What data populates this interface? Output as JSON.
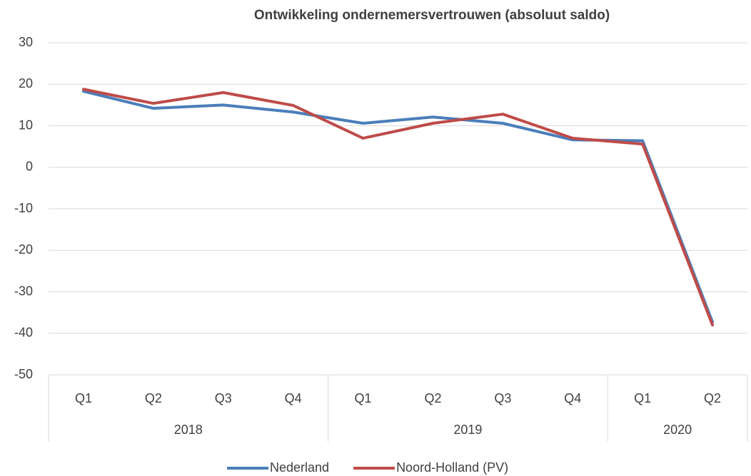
{
  "chart_data": {
    "type": "line",
    "title": "Ontwikkeling ondernemersvertrouwen (absoluut saldo)",
    "groups": [
      {
        "name": "2018",
        "categories": [
          "Q1",
          "Q2",
          "Q3",
          "Q4"
        ]
      },
      {
        "name": "2019",
        "categories": [
          "Q1",
          "Q2",
          "Q3",
          "Q4"
        ]
      },
      {
        "name": "2020",
        "categories": [
          "Q1",
          "Q2"
        ]
      }
    ],
    "series": [
      {
        "name": "Nederland",
        "color": "#4a7ebb",
        "values": [
          18.3,
          14.2,
          15,
          13.3,
          10.6,
          12.1,
          10.6,
          6.6,
          6.4,
          -37.3
        ]
      },
      {
        "name": "Noord-Holland (PV)",
        "color": "#be4b48",
        "values": [
          18.8,
          15.4,
          18,
          14.9,
          7,
          10.6,
          12.8,
          7,
          5.6,
          -38
        ]
      }
    ],
    "ylim": [
      -50,
      30
    ],
    "yticks": [
      -50,
      -40,
      -30,
      -20,
      -10,
      0,
      10,
      20,
      30
    ],
    "grid": true,
    "legend": "bottom"
  }
}
